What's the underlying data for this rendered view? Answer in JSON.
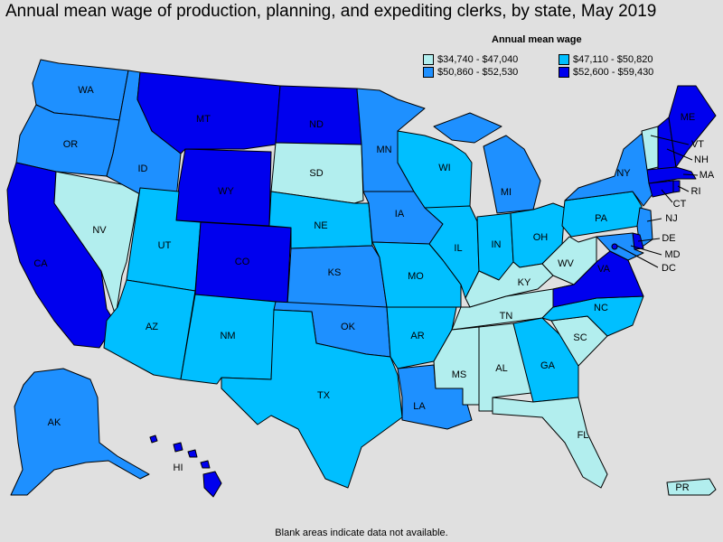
{
  "title": "Annual mean wage of production, planning, and expediting clerks, by state, May 2019",
  "legend": {
    "title": "Annual mean wage",
    "bins": [
      {
        "label": "$34,740 - $47,040",
        "color": "#b2eeee"
      },
      {
        "label": "$47,110 - $50,820",
        "color": "#00bfff"
      },
      {
        "label": "$50,860 - $52,530",
        "color": "#1e90ff"
      },
      {
        "label": "$52,600 - $59,430",
        "color": "#0000ee"
      }
    ]
  },
  "footnote": "Blank areas indicate data not available.",
  "states": {
    "WA": {
      "label": "WA",
      "bin": 2
    },
    "OR": {
      "label": "OR",
      "bin": 2
    },
    "CA": {
      "label": "CA",
      "bin": 3
    },
    "NV": {
      "label": "NV",
      "bin": 0
    },
    "ID": {
      "label": "ID",
      "bin": 2
    },
    "MT": {
      "label": "MT",
      "bin": 3
    },
    "WY": {
      "label": "WY",
      "bin": 3
    },
    "UT": {
      "label": "UT",
      "bin": 1
    },
    "AZ": {
      "label": "AZ",
      "bin": 1
    },
    "CO": {
      "label": "CO",
      "bin": 3
    },
    "NM": {
      "label": "NM",
      "bin": 1
    },
    "ND": {
      "label": "ND",
      "bin": 3
    },
    "SD": {
      "label": "SD",
      "bin": 0
    },
    "NE": {
      "label": "NE",
      "bin": 1
    },
    "KS": {
      "label": "KS",
      "bin": 2
    },
    "OK": {
      "label": "OK",
      "bin": 2
    },
    "TX": {
      "label": "TX",
      "bin": 1
    },
    "MN": {
      "label": "MN",
      "bin": 2
    },
    "IA": {
      "label": "IA",
      "bin": 2
    },
    "MO": {
      "label": "MO",
      "bin": 1
    },
    "AR": {
      "label": "AR",
      "bin": 1
    },
    "LA": {
      "label": "LA",
      "bin": 2
    },
    "WI": {
      "label": "WI",
      "bin": 1
    },
    "IL": {
      "label": "IL",
      "bin": 1
    },
    "MI": {
      "label": "MI",
      "bin": 2
    },
    "IN": {
      "label": "IN",
      "bin": 1
    },
    "OH": {
      "label": "OH",
      "bin": 1
    },
    "KY": {
      "label": "KY",
      "bin": 0
    },
    "TN": {
      "label": "TN",
      "bin": 0
    },
    "MS": {
      "label": "MS",
      "bin": 0
    },
    "AL": {
      "label": "AL",
      "bin": 0
    },
    "GA": {
      "label": "GA",
      "bin": 1
    },
    "FL": {
      "label": "FL",
      "bin": 0
    },
    "SC": {
      "label": "SC",
      "bin": 0
    },
    "NC": {
      "label": "NC",
      "bin": 1
    },
    "VA": {
      "label": "VA",
      "bin": 3
    },
    "WV": {
      "label": "WV",
      "bin": 0
    },
    "PA": {
      "label": "PA",
      "bin": 1
    },
    "NY": {
      "label": "NY",
      "bin": 2
    },
    "VT": {
      "label": "VT",
      "bin": 0
    },
    "NH": {
      "label": "NH",
      "bin": 3
    },
    "ME": {
      "label": "ME",
      "bin": 3
    },
    "MA": {
      "label": "MA",
      "bin": 3
    },
    "RI": {
      "label": "RI",
      "bin": 3
    },
    "CT": {
      "label": "CT",
      "bin": 3
    },
    "NJ": {
      "label": "NJ",
      "bin": 2
    },
    "DE": {
      "label": "DE",
      "bin": 3
    },
    "MD": {
      "label": "MD",
      "bin": 2
    },
    "DC": {
      "label": "DC",
      "bin": 3
    },
    "AK": {
      "label": "AK",
      "bin": 2
    },
    "HI": {
      "label": "HI",
      "bin": 3
    },
    "PR": {
      "label": "PR",
      "bin": 0
    }
  }
}
